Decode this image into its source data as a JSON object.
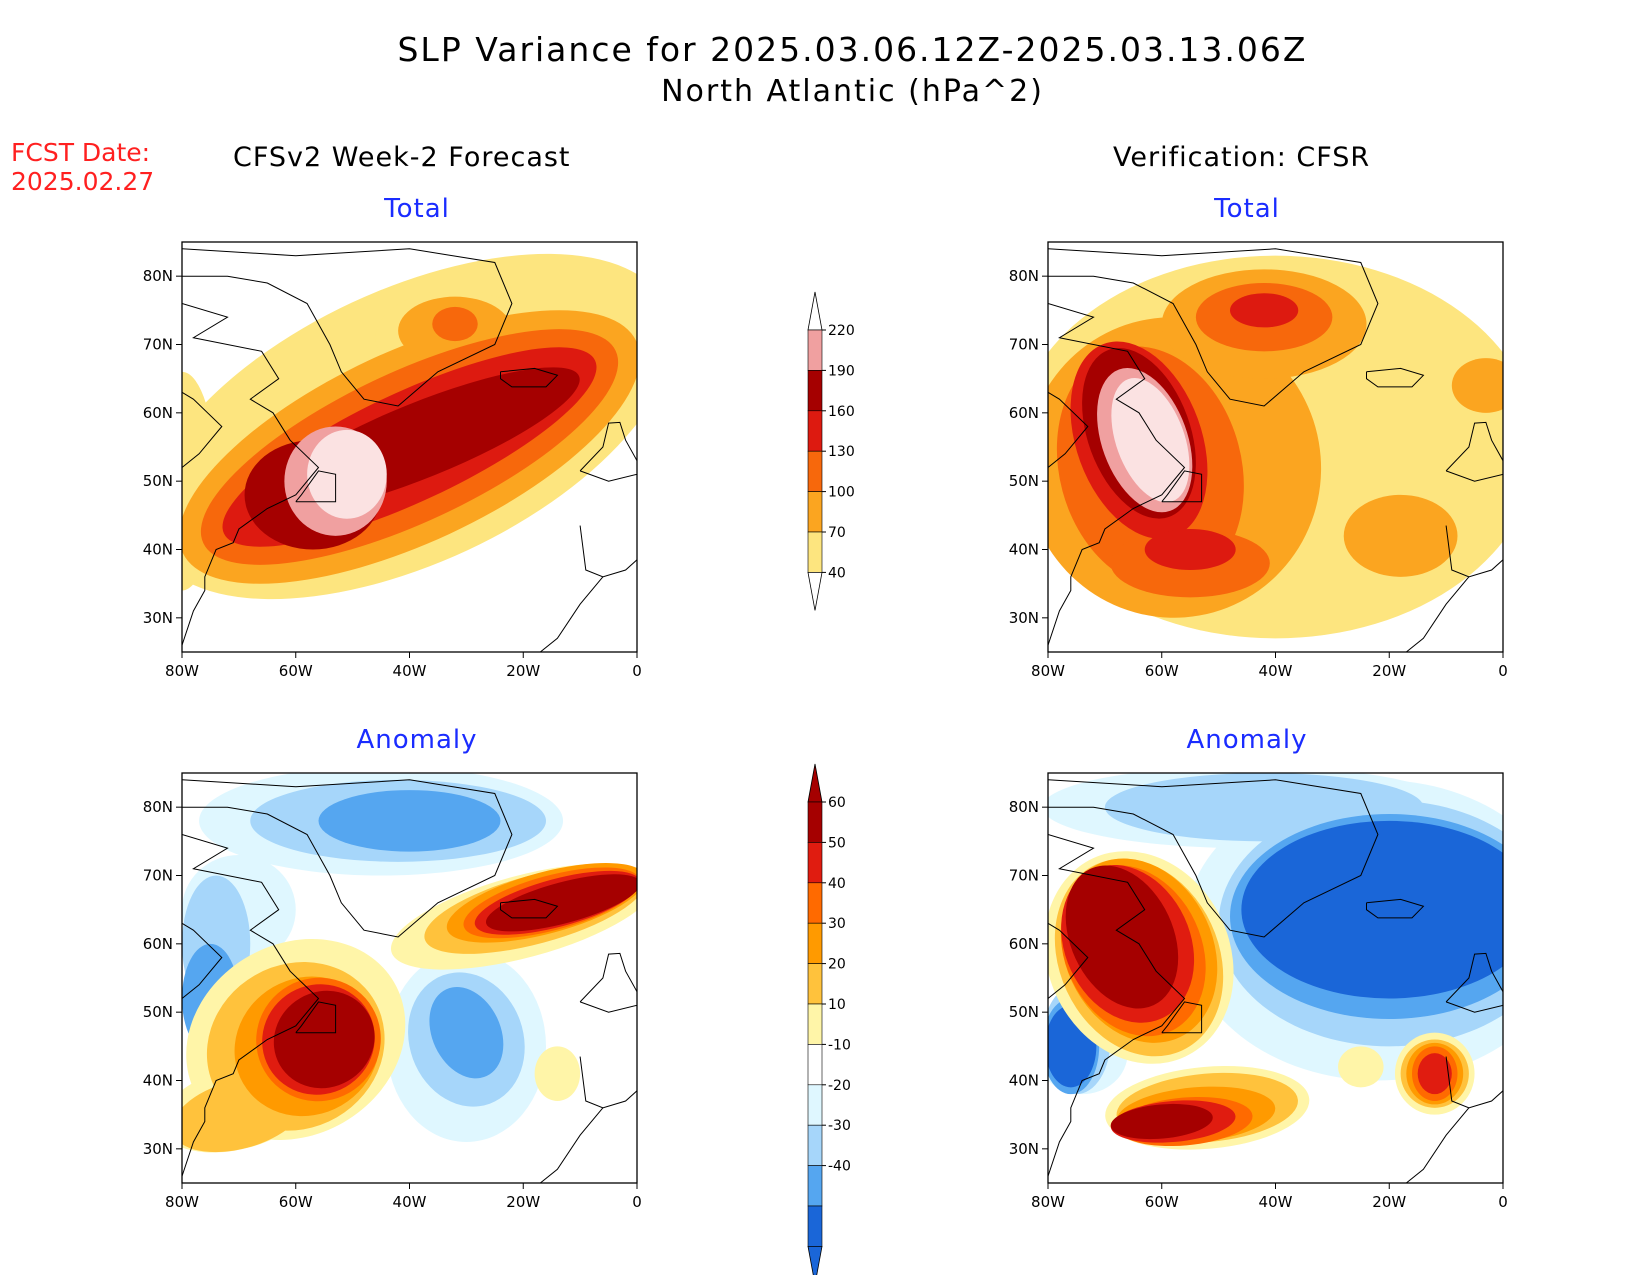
{
  "title": {
    "line1": "SLP Variance for 2025.03.06.12Z-2025.03.13.06Z",
    "line2": "North Atlantic (hPa^2)"
  },
  "fcst_date": {
    "line1": "FCST Date:",
    "line2": "2025.02.27"
  },
  "columns": {
    "left": "CFSv2 Week-2 Forecast",
    "right": "Verification: CFSR"
  },
  "colors": {
    "total": [
      "#fde57f",
      "#fba520",
      "#f7680c",
      "#dd1a10",
      "#a50000",
      "#f0a0a0",
      "#fbe2e2"
    ],
    "anom_pos": [
      "#fff5a8",
      "#ffc23c",
      "#ff9a00",
      "#ff6a00",
      "#e01c10",
      "#a50000"
    ],
    "anom_neg": [
      "#dff7ff",
      "#a6d6fa",
      "#55a6f0",
      "#1a66d8"
    ],
    "subtitle": "#1a2cff",
    "fcst": "#ff2020"
  },
  "chart_data": [
    {
      "type": "heatmap",
      "panel": "forecast-total",
      "subtitle": "Total",
      "x_ticks": [
        "80W",
        "60W",
        "40W",
        "20W",
        "0"
      ],
      "y_ticks": [
        "30N",
        "40N",
        "50N",
        "60N",
        "70N",
        "80N"
      ],
      "xlim": [
        -80,
        0
      ],
      "ylim": [
        25,
        85
      ],
      "contour_levels": [
        40,
        70,
        100,
        130,
        160,
        190,
        220
      ],
      "features": [
        {
          "lon": -50,
          "lat": 51,
          "value": 230
        },
        {
          "lon": -15,
          "lat": 66,
          "value": 175
        },
        {
          "lon": -32,
          "lat": 72,
          "value": 110
        }
      ]
    },
    {
      "type": "heatmap",
      "panel": "verification-total",
      "subtitle": "Total",
      "x_ticks": [
        "80W",
        "60W",
        "40W",
        "20W",
        "0"
      ],
      "y_ticks": [
        "30N",
        "40N",
        "50N",
        "60N",
        "70N",
        "80N"
      ],
      "xlim": [
        -80,
        0
      ],
      "ylim": [
        25,
        85
      ],
      "contour_levels": [
        40,
        70,
        100,
        130,
        160,
        190,
        220
      ],
      "features": [
        {
          "lon": -62,
          "lat": 55,
          "value": 230
        },
        {
          "lon": -42,
          "lat": 75,
          "value": 150
        },
        {
          "lon": -55,
          "lat": 42,
          "value": 130
        }
      ]
    },
    {
      "type": "heatmap",
      "panel": "forecast-anomaly",
      "subtitle": "Anomaly",
      "x_ticks": [
        "80W",
        "60W",
        "40W",
        "20W",
        "0"
      ],
      "y_ticks": [
        "30N",
        "40N",
        "50N",
        "60N",
        "70N",
        "80N"
      ],
      "xlim": [
        -80,
        0
      ],
      "ylim": [
        25,
        85
      ],
      "contour_levels": [
        -40,
        -30,
        -20,
        -10,
        10,
        20,
        30,
        40,
        50,
        60
      ],
      "features": [
        {
          "lon": -58,
          "lat": 45,
          "value": 65
        },
        {
          "lon": -15,
          "lat": 66,
          "value": 65
        },
        {
          "lon": -30,
          "lat": 47,
          "value": -35
        },
        {
          "lon": -45,
          "lat": 78,
          "value": -35
        },
        {
          "lon": -75,
          "lat": 52,
          "value": -35
        }
      ]
    },
    {
      "type": "heatmap",
      "panel": "verification-anomaly",
      "subtitle": "Anomaly",
      "x_ticks": [
        "80W",
        "60W",
        "40W",
        "20W",
        "0"
      ],
      "y_ticks": [
        "30N",
        "40N",
        "50N",
        "60N",
        "70N",
        "80N"
      ],
      "xlim": [
        -80,
        0
      ],
      "ylim": [
        25,
        85
      ],
      "contour_levels": [
        -40,
        -30,
        -20,
        -10,
        10,
        20,
        30,
        40,
        50,
        60
      ],
      "features": [
        {
          "lon": -65,
          "lat": 60,
          "value": 65
        },
        {
          "lon": -62,
          "lat": 34,
          "value": 60
        },
        {
          "lon": -15,
          "lat": 62,
          "value": -45
        },
        {
          "lon": -75,
          "lat": 44,
          "value": -40
        },
        {
          "lon": -12,
          "lat": 41,
          "value": 55
        }
      ]
    }
  ],
  "colorbars": {
    "total_labels": [
      "220",
      "190",
      "160",
      "130",
      "100",
      "70",
      "40"
    ],
    "anomaly_labels": [
      "60",
      "50",
      "40",
      "30",
      "20",
      "10",
      "-10",
      "-20",
      "-30",
      "-40"
    ]
  }
}
